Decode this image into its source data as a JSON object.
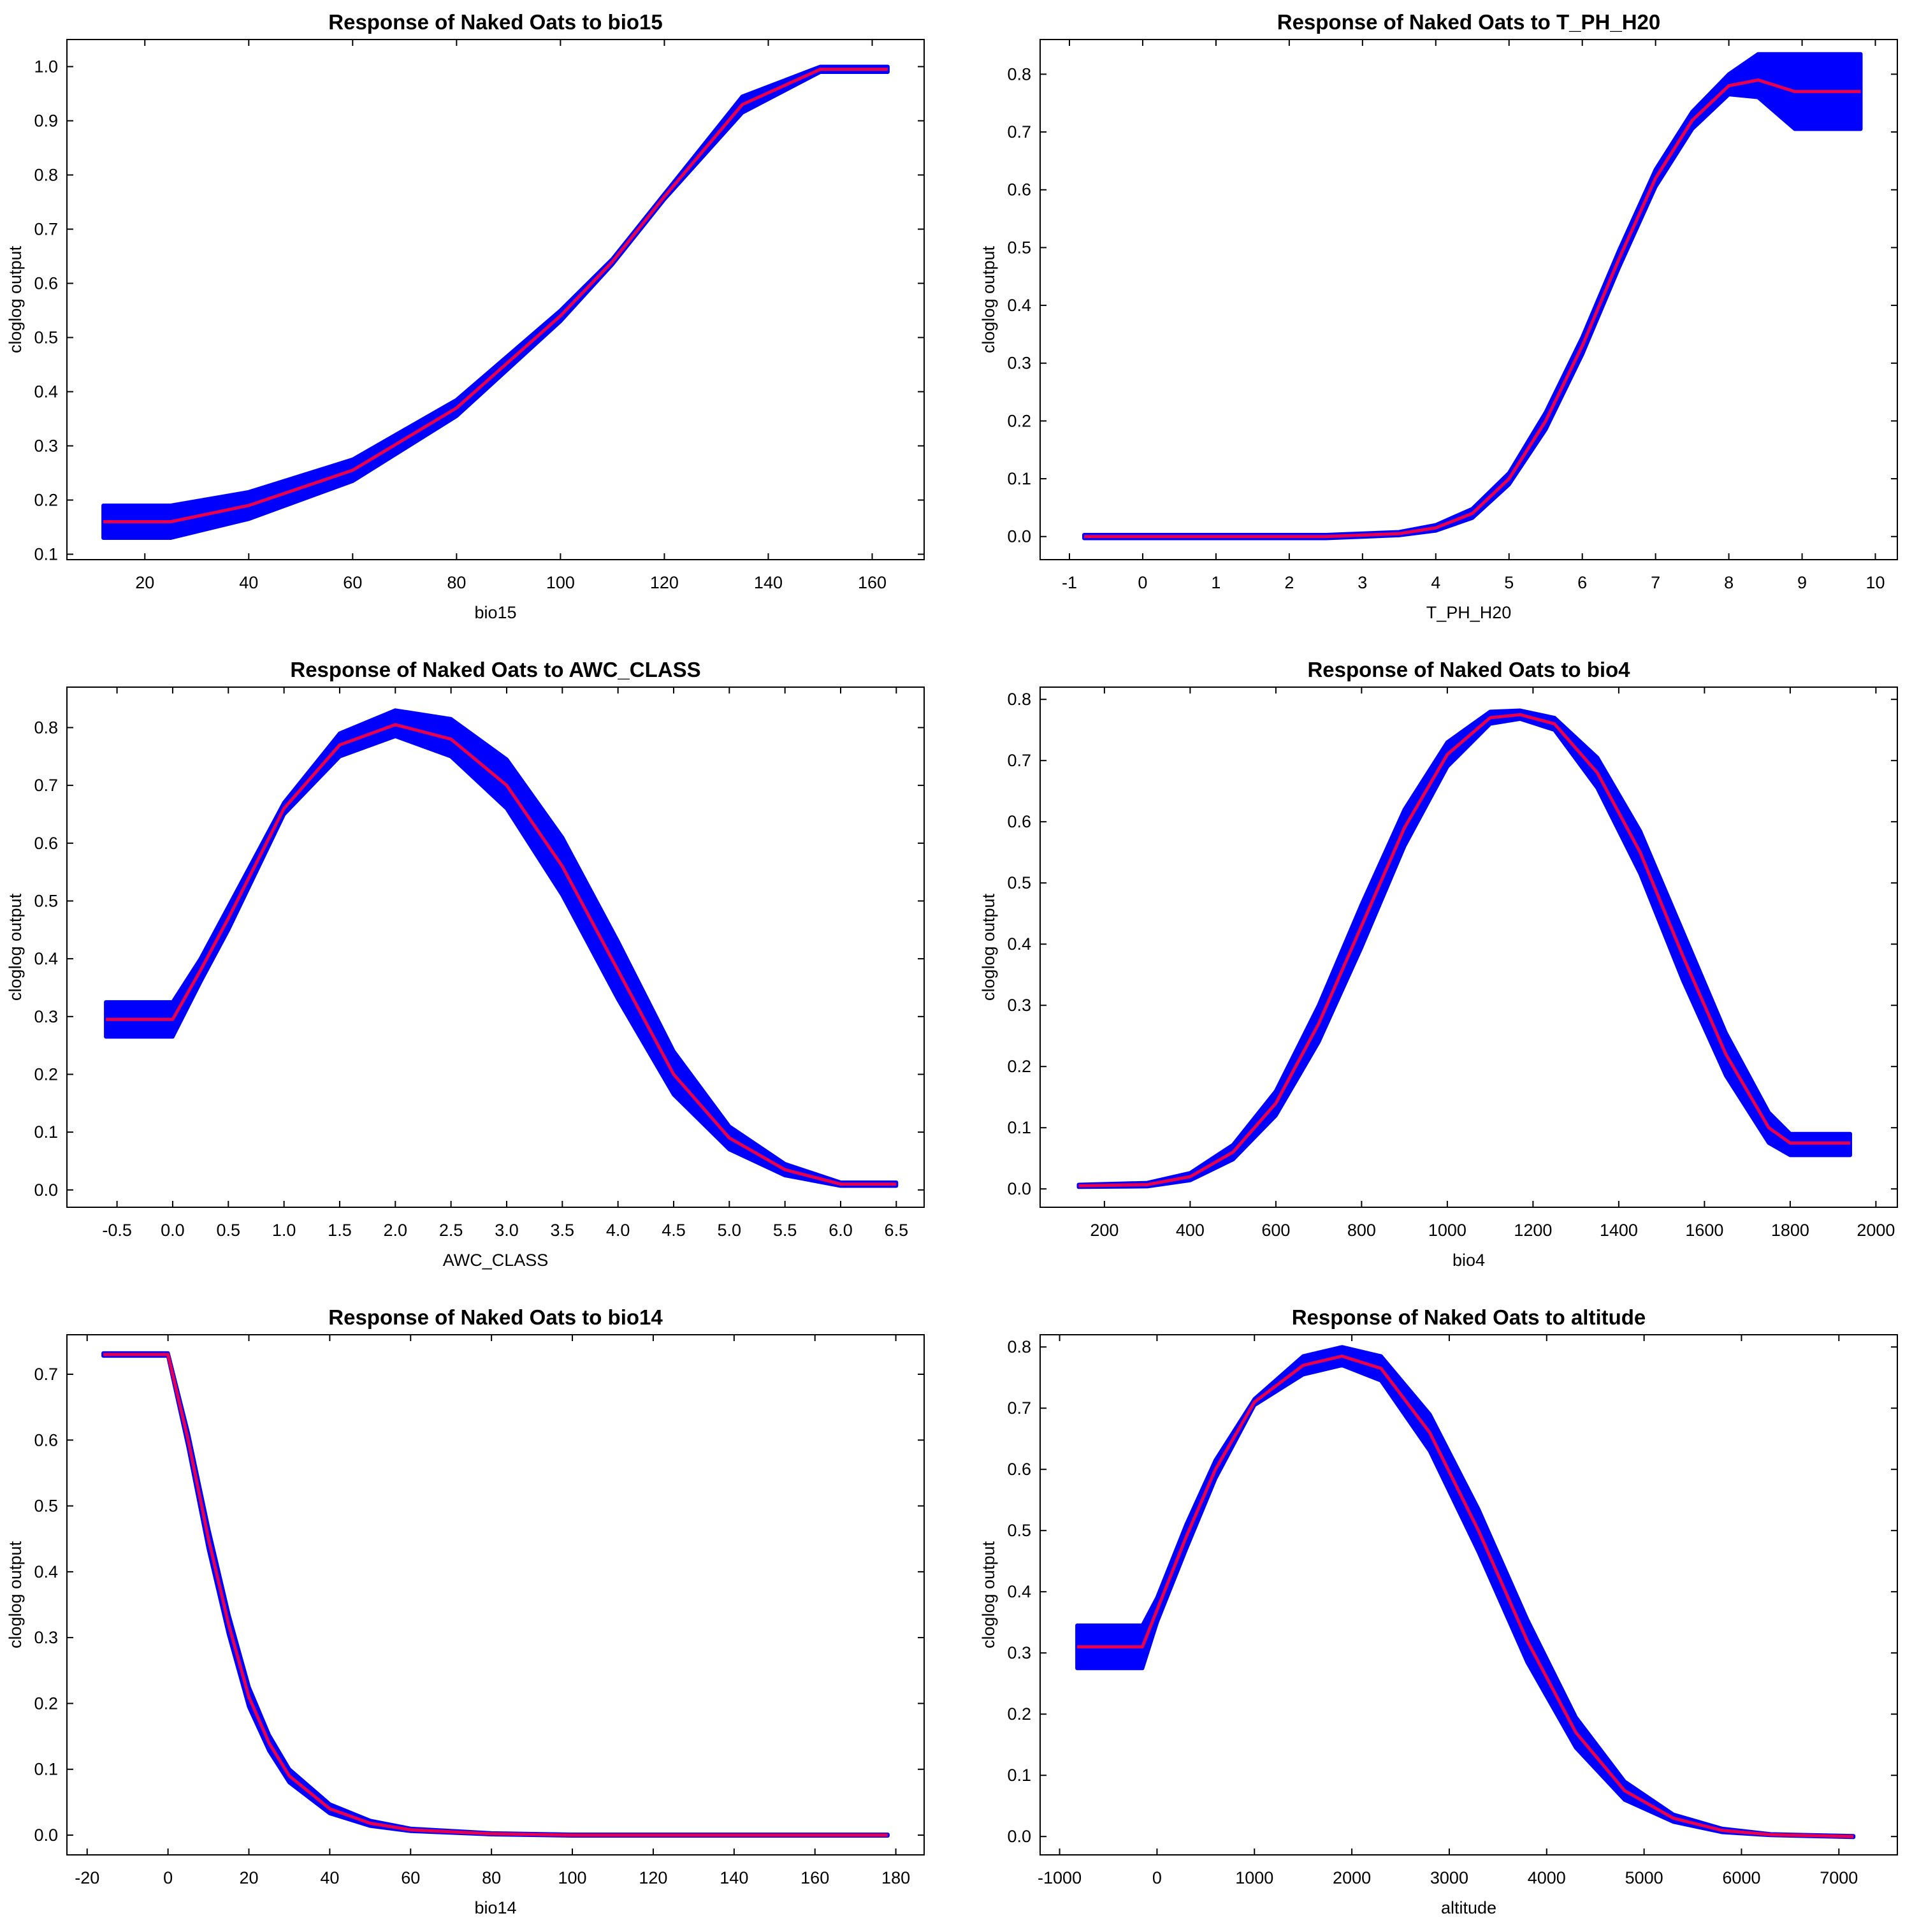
{
  "figure": {
    "colors": {
      "band": "#0000ff",
      "line": "#e8004c",
      "axes": "#000000",
      "background": "#ffffff"
    }
  },
  "chart_data": [
    {
      "type": "line",
      "title": "Response of Naked  Oats to bio15",
      "xlabel": "bio15",
      "ylabel": "cloglog output",
      "xlim": [
        5,
        170
      ],
      "ylim": [
        0.09,
        1.05
      ],
      "xticks": [
        20,
        40,
        60,
        80,
        100,
        120,
        140,
        160
      ],
      "yticks": [
        0.1,
        0.2,
        0.3,
        0.4,
        0.5,
        0.6,
        0.7,
        0.8,
        0.9,
        1.0
      ],
      "ytick_labels": [
        "0.1",
        "0.2",
        "0.3",
        "0.4",
        "0.5",
        "0.6",
        "0.7",
        "0.8",
        "0.9",
        "1.0"
      ],
      "series": [
        {
          "name": "mean",
          "x": [
            12,
            25,
            40,
            60,
            80,
            100,
            110,
            120,
            135,
            150,
            163
          ],
          "y": [
            0.16,
            0.16,
            0.19,
            0.255,
            0.37,
            0.54,
            0.64,
            0.76,
            0.93,
            0.995,
            0.995
          ]
        },
        {
          "name": "band-upper",
          "x": [
            12,
            25,
            40,
            60,
            80,
            100,
            110,
            120,
            135,
            150,
            163
          ],
          "y": [
            0.19,
            0.19,
            0.215,
            0.275,
            0.385,
            0.55,
            0.645,
            0.765,
            0.945,
            1.0,
            1.0
          ]
        },
        {
          "name": "band-lower",
          "x": [
            12,
            25,
            40,
            60,
            80,
            100,
            110,
            120,
            135,
            150,
            163
          ],
          "y": [
            0.13,
            0.13,
            0.165,
            0.235,
            0.355,
            0.53,
            0.635,
            0.755,
            0.915,
            0.99,
            0.99
          ]
        }
      ]
    },
    {
      "type": "line",
      "title": "Response of Naked  Oats to T_PH_H20",
      "xlabel": "T_PH_H20",
      "ylabel": "cloglog output",
      "xlim": [
        -1.4,
        10.3
      ],
      "ylim": [
        -0.04,
        0.86
      ],
      "xticks": [
        -1,
        0,
        1,
        2,
        3,
        4,
        5,
        6,
        7,
        8,
        9,
        10
      ],
      "yticks": [
        0.0,
        0.1,
        0.2,
        0.3,
        0.4,
        0.5,
        0.6,
        0.7,
        0.8
      ],
      "ytick_labels": [
        "0.0",
        "0.1",
        "0.2",
        "0.3",
        "0.4",
        "0.5",
        "0.6",
        "0.7",
        "0.8"
      ],
      "series": [
        {
          "name": "mean",
          "x": [
            -0.8,
            2.5,
            3.5,
            4,
            4.5,
            5,
            5.5,
            6,
            6.5,
            7,
            7.5,
            8,
            8.4,
            8.9,
            9.8
          ],
          "y": [
            0.0,
            0.0,
            0.005,
            0.015,
            0.04,
            0.1,
            0.2,
            0.33,
            0.48,
            0.62,
            0.72,
            0.78,
            0.79,
            0.77,
            0.77
          ]
        },
        {
          "name": "band-upper",
          "x": [
            -0.8,
            2.5,
            3.5,
            4,
            4.5,
            5,
            5.5,
            6,
            6.5,
            7,
            7.5,
            8,
            8.4,
            8.9,
            9.8
          ],
          "y": [
            0.003,
            0.003,
            0.008,
            0.02,
            0.048,
            0.11,
            0.215,
            0.345,
            0.495,
            0.635,
            0.735,
            0.8,
            0.835,
            0.835,
            0.835
          ]
        },
        {
          "name": "band-lower",
          "x": [
            -0.8,
            2.5,
            3.5,
            4,
            4.5,
            5,
            5.5,
            6,
            6.5,
            7,
            7.5,
            8,
            8.4,
            8.9,
            9.8
          ],
          "y": [
            -0.003,
            -0.003,
            0.002,
            0.01,
            0.032,
            0.09,
            0.185,
            0.315,
            0.465,
            0.605,
            0.705,
            0.765,
            0.76,
            0.705,
            0.705
          ]
        }
      ]
    },
    {
      "type": "line",
      "title": "Response of Naked  Oats to AWC_CLASS",
      "xlabel": "AWC_CLASS",
      "ylabel": "cloglog output",
      "xlim": [
        -0.95,
        6.75
      ],
      "ylim": [
        -0.03,
        0.87
      ],
      "xticks": [
        -0.5,
        0.0,
        0.5,
        1.0,
        1.5,
        2.0,
        2.5,
        3.0,
        3.5,
        4.0,
        4.5,
        5.0,
        5.5,
        6.0,
        6.5
      ],
      "xtick_labels": [
        "-0.5",
        "0.0",
        "0.5",
        "1.0",
        "1.5",
        "2.0",
        "2.5",
        "3.0",
        "3.5",
        "4.0",
        "4.5",
        "5.0",
        "5.5",
        "6.0",
        "6.5"
      ],
      "yticks": [
        0.0,
        0.1,
        0.2,
        0.3,
        0.4,
        0.5,
        0.6,
        0.7,
        0.8
      ],
      "ytick_labels": [
        "0.0",
        "0.1",
        "0.2",
        "0.3",
        "0.4",
        "0.5",
        "0.6",
        "0.7",
        "0.8"
      ],
      "series": [
        {
          "name": "mean",
          "x": [
            -0.6,
            0.0,
            0.25,
            0.5,
            1.0,
            1.5,
            2.0,
            2.5,
            3.0,
            3.5,
            4.0,
            4.5,
            5.0,
            5.5,
            6.0,
            6.5
          ],
          "y": [
            0.295,
            0.295,
            0.38,
            0.47,
            0.66,
            0.77,
            0.805,
            0.78,
            0.7,
            0.56,
            0.38,
            0.2,
            0.09,
            0.035,
            0.01,
            0.01
          ]
        },
        {
          "name": "band-upper",
          "x": [
            -0.6,
            0.0,
            0.25,
            0.5,
            1.0,
            1.5,
            2.0,
            2.5,
            3.0,
            3.5,
            4.0,
            4.5,
            5.0,
            5.5,
            6.0,
            6.5
          ],
          "y": [
            0.325,
            0.325,
            0.4,
            0.49,
            0.67,
            0.79,
            0.83,
            0.815,
            0.745,
            0.61,
            0.43,
            0.24,
            0.11,
            0.045,
            0.013,
            0.013
          ]
        },
        {
          "name": "band-lower",
          "x": [
            -0.6,
            0.0,
            0.25,
            0.5,
            1.0,
            1.5,
            2.0,
            2.5,
            3.0,
            3.5,
            4.0,
            4.5,
            5.0,
            5.5,
            6.0,
            6.5
          ],
          "y": [
            0.265,
            0.265,
            0.36,
            0.45,
            0.65,
            0.75,
            0.785,
            0.75,
            0.66,
            0.51,
            0.33,
            0.165,
            0.07,
            0.025,
            0.007,
            0.007
          ]
        }
      ]
    },
    {
      "type": "line",
      "title": "Response of Naked  Oats to bio4",
      "xlabel": "bio4",
      "ylabel": "cloglog output",
      "xlim": [
        50,
        2050
      ],
      "ylim": [
        -0.03,
        0.82
      ],
      "xticks": [
        200,
        400,
        600,
        800,
        1000,
        1200,
        1400,
        1600,
        1800,
        2000
      ],
      "yticks": [
        0.0,
        0.1,
        0.2,
        0.3,
        0.4,
        0.5,
        0.6,
        0.7,
        0.8
      ],
      "ytick_labels": [
        "0.0",
        "0.1",
        "0.2",
        "0.3",
        "0.4",
        "0.5",
        "0.6",
        "0.7",
        "0.8"
      ],
      "series": [
        {
          "name": "mean",
          "x": [
            140,
            300,
            400,
            500,
            600,
            700,
            800,
            900,
            1000,
            1100,
            1170,
            1250,
            1350,
            1450,
            1550,
            1650,
            1750,
            1800,
            1940
          ],
          "y": [
            0.005,
            0.007,
            0.02,
            0.06,
            0.14,
            0.27,
            0.43,
            0.59,
            0.71,
            0.77,
            0.775,
            0.76,
            0.68,
            0.55,
            0.38,
            0.22,
            0.1,
            0.075,
            0.075
          ]
        },
        {
          "name": "band-upper",
          "x": [
            140,
            300,
            400,
            500,
            600,
            700,
            800,
            900,
            1000,
            1100,
            1170,
            1250,
            1350,
            1450,
            1550,
            1650,
            1750,
            1800,
            1940
          ],
          "y": [
            0.007,
            0.01,
            0.026,
            0.072,
            0.16,
            0.3,
            0.465,
            0.62,
            0.73,
            0.78,
            0.782,
            0.77,
            0.705,
            0.585,
            0.42,
            0.255,
            0.125,
            0.09,
            0.09
          ]
        },
        {
          "name": "band-lower",
          "x": [
            140,
            300,
            400,
            500,
            600,
            700,
            800,
            900,
            1000,
            1100,
            1170,
            1250,
            1350,
            1450,
            1550,
            1650,
            1750,
            1800,
            1940
          ],
          "y": [
            0.003,
            0.004,
            0.014,
            0.048,
            0.12,
            0.24,
            0.395,
            0.56,
            0.69,
            0.76,
            0.768,
            0.75,
            0.655,
            0.515,
            0.34,
            0.185,
            0.075,
            0.055,
            0.055
          ]
        }
      ]
    },
    {
      "type": "line",
      "title": "Response of Naked  Oats to bio14",
      "xlabel": "bio14",
      "ylabel": "cloglog output",
      "xlim": [
        -25,
        187
      ],
      "ylim": [
        -0.03,
        0.76
      ],
      "xticks": [
        -20,
        0,
        20,
        40,
        60,
        80,
        100,
        120,
        140,
        160,
        180
      ],
      "yticks": [
        0.0,
        0.1,
        0.2,
        0.3,
        0.4,
        0.5,
        0.6,
        0.7
      ],
      "ytick_labels": [
        "0.0",
        "0.1",
        "0.2",
        "0.3",
        "0.4",
        "0.5",
        "0.6",
        "0.7"
      ],
      "series": [
        {
          "name": "mean",
          "x": [
            -16,
            0,
            5,
            10,
            15,
            20,
            25,
            30,
            40,
            50,
            60,
            80,
            100,
            178
          ],
          "y": [
            0.73,
            0.73,
            0.6,
            0.45,
            0.32,
            0.21,
            0.14,
            0.09,
            0.04,
            0.018,
            0.008,
            0.002,
            0.0,
            0.0
          ]
        },
        {
          "name": "band-upper",
          "x": [
            -16,
            0,
            5,
            10,
            15,
            20,
            25,
            30,
            40,
            50,
            60,
            80,
            100,
            178
          ],
          "y": [
            0.732,
            0.732,
            0.61,
            0.465,
            0.335,
            0.225,
            0.152,
            0.1,
            0.047,
            0.022,
            0.01,
            0.003,
            0.001,
            0.001
          ]
        },
        {
          "name": "band-lower",
          "x": [
            -16,
            0,
            5,
            10,
            15,
            20,
            25,
            30,
            40,
            50,
            60,
            80,
            100,
            178
          ],
          "y": [
            0.728,
            0.728,
            0.59,
            0.435,
            0.305,
            0.195,
            0.128,
            0.08,
            0.033,
            0.014,
            0.006,
            0.001,
            -0.001,
            -0.001
          ]
        }
      ]
    },
    {
      "type": "line",
      "title": "Response of Naked  Oats to altitude",
      "xlabel": "altitude",
      "ylabel": "cloglog output",
      "xlim": [
        -1200,
        7600
      ],
      "ylim": [
        -0.03,
        0.82
      ],
      "xticks": [
        -1000,
        0,
        1000,
        2000,
        3000,
        4000,
        5000,
        6000,
        7000
      ],
      "yticks": [
        0.0,
        0.1,
        0.2,
        0.3,
        0.4,
        0.5,
        0.6,
        0.7,
        0.8
      ],
      "ytick_labels": [
        "0.0",
        "0.1",
        "0.2",
        "0.3",
        "0.4",
        "0.5",
        "0.6",
        "0.7",
        "0.8"
      ],
      "series": [
        {
          "name": "mean",
          "x": [
            -820,
            -150,
            0,
            300,
            600,
            1000,
            1500,
            1900,
            2300,
            2800,
            3300,
            3800,
            4300,
            4800,
            5300,
            5800,
            6300,
            7150
          ],
          "y": [
            0.31,
            0.31,
            0.37,
            0.49,
            0.6,
            0.71,
            0.77,
            0.785,
            0.765,
            0.66,
            0.5,
            0.32,
            0.17,
            0.075,
            0.03,
            0.01,
            0.003,
            0.0
          ]
        },
        {
          "name": "band-upper",
          "x": [
            -820,
            -150,
            0,
            300,
            600,
            1000,
            1500,
            1900,
            2300,
            2800,
            3300,
            3800,
            4300,
            4800,
            5300,
            5800,
            6300,
            7150
          ],
          "y": [
            0.345,
            0.345,
            0.39,
            0.51,
            0.615,
            0.715,
            0.785,
            0.8,
            0.785,
            0.69,
            0.535,
            0.355,
            0.195,
            0.09,
            0.036,
            0.013,
            0.004,
            0.001
          ]
        },
        {
          "name": "band-lower",
          "x": [
            -820,
            -150,
            0,
            300,
            600,
            1000,
            1500,
            1900,
            2300,
            2800,
            3300,
            3800,
            4300,
            4800,
            5300,
            5800,
            6300,
            7150
          ],
          "y": [
            0.275,
            0.275,
            0.35,
            0.47,
            0.585,
            0.705,
            0.755,
            0.77,
            0.745,
            0.63,
            0.465,
            0.285,
            0.145,
            0.06,
            0.024,
            0.007,
            0.002,
            -0.001
          ]
        }
      ]
    }
  ]
}
